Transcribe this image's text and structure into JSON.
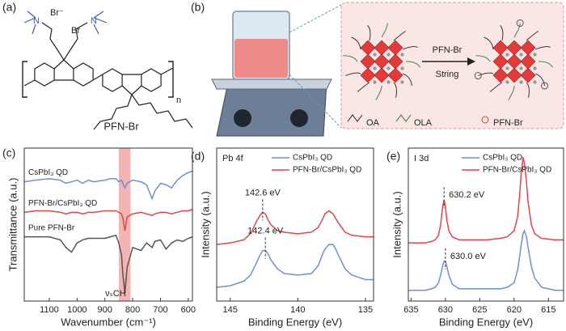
{
  "panel_a": {
    "label": "(a)",
    "n_left": "N",
    "br_ion": "Br⁻",
    "br": "Br",
    "n_right": "N",
    "repeat": "n",
    "name": "PFN-Br"
  },
  "panel_b": {
    "label": "(b)",
    "reagent": "PFN-Br",
    "process": "String",
    "legend": [
      "OA",
      "OLA",
      "PFN-Br"
    ]
  },
  "chart_data": [
    {
      "type": "line",
      "panel": "(c)",
      "ylabel": "Transmittance (a.u.)",
      "xlabel": "Wavenumber (cm⁻¹)",
      "x": [
        1190,
        1150,
        1100,
        1060,
        1040,
        1020,
        1000,
        980,
        960,
        940,
        900,
        880,
        860,
        850,
        840,
        835,
        828,
        820,
        800,
        770,
        750,
        730,
        720,
        700,
        680,
        660,
        640,
        620,
        600,
        585
      ],
      "xlim": [
        1190,
        585
      ],
      "xticks": [
        1100,
        1000,
        900,
        800,
        700,
        600
      ],
      "ylim": [
        0,
        10
      ],
      "highlight": [
        850,
        808
      ],
      "highlight_color": "#f4b4b4",
      "annotation": "νₛCH",
      "legend": "inline",
      "series": [
        {
          "name": "CsPbI₃ QD",
          "color": "#6f8fcf",
          "values": [
            7.8,
            7.9,
            8.0,
            7.9,
            7.7,
            7.8,
            7.9,
            7.7,
            7.9,
            7.8,
            7.9,
            8.0,
            8.0,
            7.8,
            7.9,
            7.7,
            7.4,
            7.7,
            7.9,
            7.8,
            7.6,
            6.7,
            7.2,
            7.7,
            7.6,
            7.4,
            7.9,
            8.2,
            8.4,
            8.5
          ]
        },
        {
          "name": "PFN-Br/CsPbI₃ QD",
          "color": "#e0474c",
          "values": [
            5.8,
            5.9,
            5.9,
            5.8,
            5.7,
            5.8,
            5.8,
            5.7,
            5.8,
            5.8,
            5.9,
            5.9,
            5.9,
            5.8,
            5.7,
            5.4,
            4.6,
            5.5,
            5.7,
            5.8,
            5.7,
            5.6,
            5.7,
            5.8,
            5.8,
            5.7,
            5.8,
            5.9,
            5.9,
            6.0
          ]
        },
        {
          "name": "Pure PFN-Br",
          "color": "#555555",
          "values": [
            4.2,
            4.2,
            4.2,
            4.0,
            3.5,
            3.2,
            3.8,
            4.0,
            4.1,
            4.1,
            4.1,
            4.2,
            4.3,
            3.8,
            3.0,
            1.7,
            0.5,
            2.2,
            3.5,
            3.3,
            3.8,
            3.5,
            3.9,
            4.0,
            3.4,
            3.8,
            4.0,
            3.9,
            4.1,
            4.2
          ]
        }
      ]
    },
    {
      "type": "line",
      "panel": "(d)",
      "title": "Pb 4f",
      "ylabel": "Intensity (a.u.)",
      "xlabel": "Binding Energy (eV)",
      "x": [
        146,
        145,
        144,
        143.5,
        143,
        142.8,
        142.6,
        142.4,
        142.2,
        142,
        141.5,
        141,
        140,
        139,
        138.5,
        138.2,
        138,
        137.7,
        137.4,
        137.2,
        137,
        136.5,
        136,
        135,
        134.4
      ],
      "xlim": [
        146,
        134.4
      ],
      "xticks": [
        145,
        140,
        135
      ],
      "ylim": [
        0,
        10
      ],
      "legend": "upper right",
      "series": [
        {
          "name": "CsPbI₃ QD",
          "color": "#6f8fcf",
          "values": [
            0.9,
            1.0,
            1.3,
            1.7,
            2.6,
            3.0,
            3.3,
            3.3,
            3.1,
            2.7,
            2.1,
            1.8,
            1.7,
            1.8,
            2.3,
            3.0,
            3.4,
            3.7,
            3.7,
            3.4,
            3.0,
            2.1,
            1.7,
            1.4,
            1.4
          ],
          "peak": {
            "value": 142.4,
            "label": "142.4 eV"
          }
        },
        {
          "name": "PFN-Br/CsPbI₃ QD",
          "color": "#e0474c",
          "values": [
            3.7,
            3.8,
            4.0,
            4.4,
            5.3,
            5.6,
            5.8,
            5.7,
            5.3,
            5.0,
            4.6,
            4.5,
            4.4,
            4.5,
            4.8,
            5.3,
            5.7,
            5.9,
            5.7,
            5.4,
            5.1,
            4.5,
            4.3,
            4.2,
            4.2
          ],
          "peak": {
            "value": 142.6,
            "label": "142.6 eV"
          }
        }
      ]
    },
    {
      "type": "line",
      "panel": "(e)",
      "title": "I 3d",
      "ylabel": "Intensity (a.u.)",
      "xlabel": "Binding Energy (eV)",
      "x": [
        635.4,
        634,
        633,
        632,
        631.5,
        631,
        630.7,
        630.4,
        630.2,
        630,
        629.8,
        629.5,
        629,
        628,
        626,
        624,
        622,
        621,
        620,
        619.5,
        619.2,
        619,
        618.7,
        618.5,
        618.2,
        618,
        617.5,
        617,
        616,
        614,
        612.8
      ],
      "xlim": [
        635.4,
        612.8
      ],
      "xticks": [
        635,
        630,
        625,
        620,
        615
      ],
      "ylim": [
        0,
        10
      ],
      "legend": "upper right",
      "series": [
        {
          "name": "CsPbI₃ QD",
          "color": "#6f8fcf",
          "values": [
            0.7,
            0.7,
            0.7,
            0.8,
            0.9,
            1.2,
            1.7,
            2.3,
            2.6,
            2.6,
            2.3,
            1.7,
            1.1,
            0.8,
            0.8,
            0.8,
            0.8,
            0.9,
            1.2,
            2.0,
            2.9,
            3.6,
            4.4,
            4.6,
            4.2,
            3.6,
            2.3,
            1.5,
            0.9,
            0.7,
            0.7
          ],
          "peak": {
            "value": 630,
            "label": "630.0 eV"
          }
        },
        {
          "name": "PFN-Br/CsPbI₃ QD",
          "color": "#e0474c",
          "values": [
            3.8,
            3.8,
            3.8,
            3.9,
            4.0,
            4.3,
            5.0,
            6.2,
            6.6,
            6.2,
            5.3,
            4.6,
            4.2,
            4.0,
            4.0,
            4.0,
            4.1,
            4.2,
            4.6,
            5.5,
            6.9,
            8.2,
            9.4,
            9.0,
            7.8,
            6.6,
            5.0,
            4.4,
            4.1,
            4.0,
            4.0
          ],
          "peak": {
            "value": 630.2,
            "label": "630.2 eV"
          }
        }
      ]
    }
  ]
}
